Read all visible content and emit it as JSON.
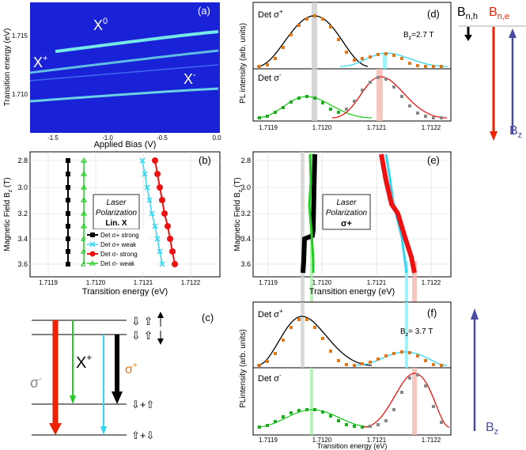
{
  "figure": {
    "panel_a": {
      "label": "(a)",
      "xlabel": "Applied Bias (V)",
      "ylabel": "Transition energy (eV)",
      "xticks": [
        "-1.5",
        "-1.0",
        "-0.5",
        "0.0"
      ],
      "yticks": [
        "1.715",
        "1.710"
      ],
      "labels": {
        "x0": "X",
        "x0_sup": "0",
        "xplus": "X",
        "xplus_sup": "+",
        "xminus": "X",
        "xminus_sup": "-"
      },
      "colors": {
        "bg": "#1a22d8",
        "line": "#7fffe8"
      }
    },
    "panel_b": {
      "label": "(b)",
      "xlabel": "Transition energy (eV)",
      "ylabel_main": "Magnetic Field B",
      "ylabel_sub": "z",
      "ylabel_unit": " (T)",
      "xticks": [
        "1.7119",
        "1.7120",
        "1.7121",
        "1.7122"
      ],
      "yticks": [
        "2.8",
        "3.0",
        "3.2",
        "3.4",
        "3.6"
      ],
      "box_line1": "Laser",
      "box_line2": "Polarization",
      "box_line3": "Lin. X",
      "legend": [
        {
          "text": "Det σ+ strong",
          "color": "#000000"
        },
        {
          "text": "Det σ+ weak",
          "color": "#33d6f0"
        },
        {
          "text": "Det σ- strong",
          "color": "#ee1111"
        },
        {
          "text": "Det σ- weak",
          "color": "#22cc22"
        }
      ]
    },
    "panel_c": {
      "label": "(c)",
      "xplus": "X",
      "xplus_sup": "+",
      "sigma_minus": "σ-",
      "sigma_plus": "σ+",
      "state_label_mid": "⇩+⇧",
      "state_label_bot": "⇧+⇩",
      "colors": {
        "sigma_minus": "#888888",
        "sigma_plus": "#e07818",
        "red": "#ee2200",
        "green": "#22cc22",
        "cyan": "#33d6f0",
        "black": "#000000"
      }
    },
    "panel_d": {
      "label": "(d)",
      "ylabel": "PL intensity (arb. units)",
      "top_det": "Det σ+",
      "bot_det": "Det σ-",
      "field": "B",
      "field_sub": "z",
      "field_value": "=2.7 T",
      "xticks": [
        "1.7119",
        "1.7120",
        "1.7121",
        "1.7122"
      ]
    },
    "panel_e": {
      "label": "(e)",
      "xlabel": "Transition energy (eV)",
      "ylabel_main": "Magnetic Field B",
      "ylabel_sub": "z",
      "ylabel_unit": " (T)",
      "xticks": [
        "1.7119",
        "1.7120",
        "1.7121",
        "1.7122"
      ],
      "yticks": [
        "2.8",
        "3.0",
        "3.2",
        "3.4",
        "3.6"
      ],
      "box_line1": "Laser",
      "box_line2": "Polarization",
      "box_line3": "σ+"
    },
    "panel_f": {
      "label": "(f)",
      "ylabel": "PLintensity (arb. units)",
      "xlabel": "Transition energy (eV)",
      "top_det": "Det σ+",
      "bot_det": "Det σ-",
      "field": "B",
      "field_sub": "z",
      "field_value": "= 3.7 T",
      "xticks": [
        "1.7119",
        "1.7120",
        "1.7121",
        "1.7122"
      ]
    },
    "right_schematic": {
      "bnh": "B",
      "bnh_sub": "n,h",
      "bne": "B",
      "bne_sub": "n,e",
      "bz_top": "B",
      "bz_top_sub": "z",
      "bz_bottom": "B",
      "bz_bottom_sub": "z",
      "colors": {
        "black": "#000000",
        "red": "#ee2200",
        "blue": "#4a4aa0"
      }
    }
  }
}
